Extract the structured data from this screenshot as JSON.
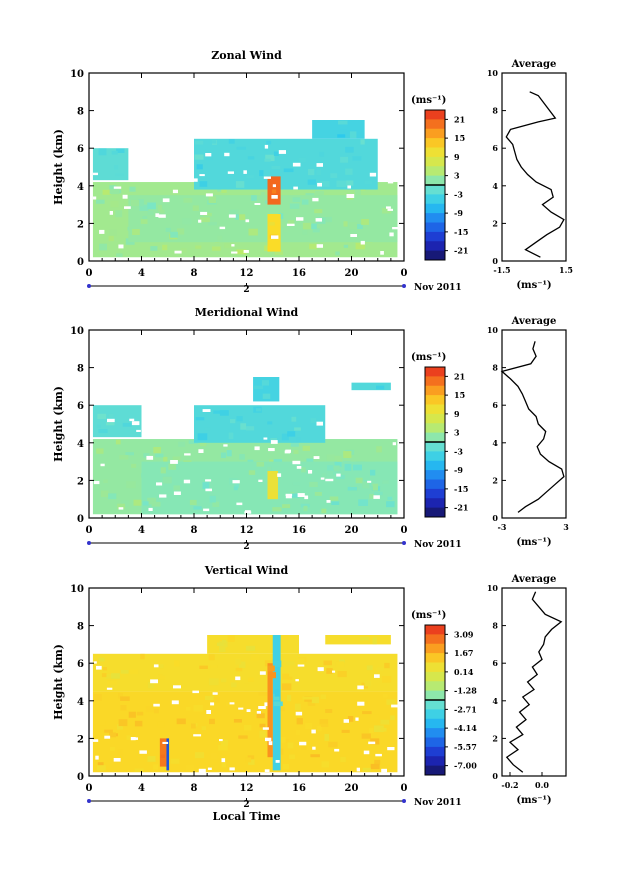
{
  "chart_data": [
    {
      "type": "heatmap",
      "title": "Zonal Wind",
      "ylabel": "Height (km)",
      "xlabel": "",
      "x_ticks": [
        "0",
        "4",
        "8",
        "12",
        "16",
        "20",
        "0"
      ],
      "y_ticks": [
        "0",
        "2",
        "4",
        "6",
        "8",
        "10"
      ],
      "xlim": [
        0,
        24
      ],
      "ylim": [
        0,
        10
      ],
      "date_label": "Nov 2011",
      "day_label": "2",
      "colorbar": {
        "unit": "(ms⁻¹)",
        "ticks": [
          "21",
          "15",
          "9",
          "3",
          "-3",
          "-9",
          "-15",
          "-21"
        ],
        "range": [
          -24,
          24
        ]
      },
      "regions": [
        {
          "t0": 0.3,
          "t1": 23.5,
          "h0": 0.2,
          "h1": 4.2,
          "value": 3
        },
        {
          "t0": 3.0,
          "t1": 23.5,
          "h0": 1.0,
          "h1": 3.5,
          "value": 2
        },
        {
          "t0": 8.0,
          "t1": 22.0,
          "h0": 3.8,
          "h1": 6.5,
          "value": -3
        },
        {
          "t0": 0.3,
          "t1": 3.0,
          "h0": 4.3,
          "h1": 6.0,
          "value": -2
        },
        {
          "t0": 17.0,
          "t1": 21.0,
          "h0": 6.5,
          "h1": 7.5,
          "value": -4
        },
        {
          "t0": 13.6,
          "t1": 14.6,
          "h0": 3.0,
          "h1": 4.5,
          "value": 20
        },
        {
          "t0": 13.6,
          "t1": 14.6,
          "h0": 0.5,
          "h1": 2.5,
          "value": 12
        }
      ],
      "average_profile": {
        "title": "Average",
        "xlabel": "(ms⁻¹)",
        "x_ticks": [
          "-1.5",
          "1.5"
        ],
        "xlim": [
          -1.5,
          1.5
        ],
        "heights": [
          0.2,
          0.6,
          1.0,
          1.4,
          1.8,
          2.2,
          2.6,
          3.0,
          3.4,
          3.8,
          4.2,
          4.6,
          5.0,
          5.4,
          5.8,
          6.2,
          6.6,
          7.0,
          7.4,
          7.6,
          8.8,
          9.0
        ],
        "values": [
          0.3,
          -0.4,
          0.1,
          0.6,
          1.2,
          1.4,
          0.8,
          0.4,
          0.9,
          0.8,
          0.1,
          -0.3,
          -0.6,
          -0.8,
          -0.9,
          -1.0,
          -1.3,
          -1.1,
          0.2,
          1.0,
          0.2,
          -0.2
        ]
      }
    },
    {
      "type": "heatmap",
      "title": "Meridional Wind",
      "ylabel": "Height (km)",
      "xlabel": "",
      "x_ticks": [
        "0",
        "4",
        "8",
        "12",
        "16",
        "20",
        "0"
      ],
      "y_ticks": [
        "0",
        "2",
        "4",
        "6",
        "8",
        "10"
      ],
      "xlim": [
        0,
        24
      ],
      "ylim": [
        0,
        10
      ],
      "date_label": "Nov 2011",
      "day_label": "2",
      "colorbar": {
        "unit": "(ms⁻¹)",
        "ticks": [
          "21",
          "15",
          "9",
          "3",
          "-3",
          "-9",
          "-15",
          "-21"
        ],
        "range": [
          -24,
          24
        ]
      },
      "regions": [
        {
          "t0": 0.3,
          "t1": 23.5,
          "h0": 0.2,
          "h1": 4.2,
          "value": 2
        },
        {
          "t0": 4.0,
          "t1": 23.5,
          "h0": 0.2,
          "h1": 3.0,
          "value": 1
        },
        {
          "t0": 8.0,
          "t1": 18.0,
          "h0": 4.0,
          "h1": 6.0,
          "value": -3
        },
        {
          "t0": 0.3,
          "t1": 4.0,
          "h0": 4.3,
          "h1": 6.0,
          "value": -2
        },
        {
          "t0": 12.5,
          "t1": 14.5,
          "h0": 6.2,
          "h1": 7.5,
          "value": -4
        },
        {
          "t0": 20.0,
          "t1": 23.0,
          "h0": 6.8,
          "h1": 7.2,
          "value": -3
        },
        {
          "t0": 13.6,
          "t1": 14.4,
          "h0": 1.0,
          "h1": 2.5,
          "value": 10
        }
      ],
      "average_profile": {
        "title": "Average",
        "xlabel": "(ms⁻¹)",
        "x_ticks": [
          "-3",
          "3"
        ],
        "xlim": [
          -3,
          3
        ],
        "heights": [
          0.3,
          0.6,
          1.0,
          1.4,
          1.8,
          2.2,
          2.6,
          3.0,
          3.4,
          3.8,
          4.2,
          4.6,
          5.0,
          5.4,
          5.8,
          6.2,
          6.6,
          7.0,
          7.4,
          7.8,
          8.2,
          8.6,
          9.0,
          9.4
        ],
        "values": [
          -1.5,
          -0.8,
          0.4,
          1.2,
          2.0,
          2.8,
          2.6,
          1.4,
          0.6,
          0.3,
          0.9,
          1.1,
          0.4,
          0.2,
          -0.5,
          -0.8,
          -1.1,
          -1.5,
          -2.2,
          -3.0,
          -0.3,
          0.2,
          -0.1,
          0.1
        ]
      }
    },
    {
      "type": "heatmap",
      "title": "Vertical Wind",
      "ylabel": "Height (km)",
      "xlabel": "Local Time",
      "x_ticks": [
        "0",
        "4",
        "8",
        "12",
        "16",
        "20",
        "0"
      ],
      "y_ticks": [
        "0",
        "2",
        "4",
        "6",
        "8",
        "10"
      ],
      "xlim": [
        0,
        24
      ],
      "ylim": [
        0,
        10
      ],
      "date_label": "Nov 2011",
      "day_label": "2",
      "colorbar": {
        "unit": "(ms⁻¹)",
        "ticks": [
          "3.09",
          "1.67",
          "0.14",
          "-1.28",
          "-2.71",
          "-4.14",
          "-5.57",
          "-7.00"
        ],
        "range": [
          -7.71,
          3.8
        ]
      },
      "regions": [
        {
          "t0": 0.3,
          "t1": 23.5,
          "h0": 0.2,
          "h1": 4.5,
          "value": 1.0
        },
        {
          "t0": 0.3,
          "t1": 23.5,
          "h0": 4.5,
          "h1": 6.5,
          "value": 0.8
        },
        {
          "t0": 9.0,
          "t1": 16.0,
          "h0": 6.5,
          "h1": 7.5,
          "value": 0.8
        },
        {
          "t0": 18.0,
          "t1": 23.0,
          "h0": 7.0,
          "h1": 7.5,
          "value": 0.8
        },
        {
          "t0": 5.4,
          "t1": 5.9,
          "h0": 0.5,
          "h1": 2.0,
          "value": 2.6
        },
        {
          "t0": 5.9,
          "t1": 6.1,
          "h0": 0.3,
          "h1": 2.0,
          "value": -5.5
        },
        {
          "t0": 14.0,
          "t1": 14.6,
          "h0": 0.3,
          "h1": 7.5,
          "value": -3.0
        },
        {
          "t0": 13.6,
          "t1": 14.0,
          "h0": 1.0,
          "h1": 6.0,
          "value": 2.2
        }
      ],
      "average_profile": {
        "title": "Average",
        "xlabel": "(ms⁻¹)",
        "x_ticks": [
          "-0.2",
          "0.0"
        ],
        "xlim": [
          -0.25,
          0.15
        ],
        "heights": [
          0.2,
          0.6,
          1.0,
          1.4,
          1.8,
          2.2,
          2.6,
          3.0,
          3.4,
          3.8,
          4.2,
          4.6,
          5.0,
          5.4,
          5.8,
          6.2,
          6.6,
          7.0,
          7.4,
          7.8,
          8.2,
          8.6,
          9.0,
          9.4,
          9.8
        ],
        "values": [
          -0.12,
          -0.18,
          -0.22,
          -0.15,
          -0.2,
          -0.12,
          -0.16,
          -0.1,
          -0.14,
          -0.08,
          -0.12,
          -0.05,
          -0.09,
          -0.03,
          -0.06,
          0.0,
          -0.02,
          0.01,
          0.02,
          0.06,
          0.12,
          0.02,
          -0.02,
          -0.06,
          -0.04
        ]
      }
    }
  ]
}
